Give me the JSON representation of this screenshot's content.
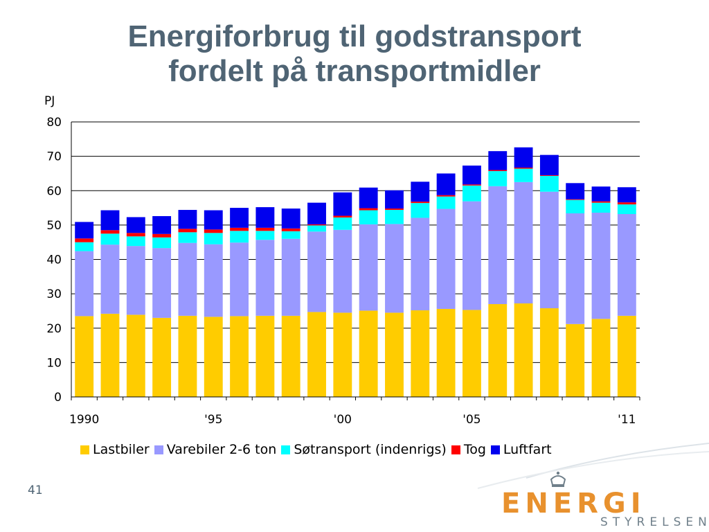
{
  "slide": {
    "title_line1": "Energiforbrug til godstransport",
    "title_line2": "fordelt på transportmidler",
    "number": "41"
  },
  "logo": {
    "word": "ENERGI",
    "sub": "STYRELSEN"
  },
  "chart_data": {
    "type": "bar",
    "stacked": true,
    "unit_label": "PJ",
    "ylim": [
      0,
      80
    ],
    "yticks": [
      0,
      10,
      20,
      30,
      40,
      50,
      60,
      70,
      80
    ],
    "grid": true,
    "legend_position": "bottom",
    "categories": [
      "1990",
      "1991",
      "1992",
      "1993",
      "1994",
      "1995",
      "1996",
      "1997",
      "1998",
      "1999",
      "2000",
      "2001",
      "2002",
      "2003",
      "2004",
      "2005",
      "2006",
      "2007",
      "2008",
      "2009",
      "2010",
      "2011"
    ],
    "x_tick_labels": [
      {
        "index": 0,
        "label": "1990"
      },
      {
        "index": 5,
        "label": "'95"
      },
      {
        "index": 10,
        "label": "'00"
      },
      {
        "index": 15,
        "label": "'05"
      },
      {
        "index": 21,
        "label": "'11"
      }
    ],
    "series": [
      {
        "name": "Lastbiler",
        "color": "#ffcc00",
        "values": [
          23.5,
          24.2,
          23.9,
          23.0,
          23.6,
          23.3,
          23.5,
          23.6,
          23.6,
          24.7,
          24.5,
          25.1,
          24.5,
          25.2,
          25.6,
          25.3,
          27.0,
          27.2,
          25.8,
          21.2,
          22.7,
          23.6
        ]
      },
      {
        "name": "Varebiler 2-6 ton",
        "color": "#9999ff",
        "values": [
          18.9,
          20.1,
          20.0,
          20.3,
          21.2,
          21.1,
          21.4,
          22.1,
          22.4,
          23.4,
          24.1,
          25.1,
          25.8,
          26.9,
          29.1,
          31.6,
          34.3,
          35.3,
          33.9,
          32.2,
          30.9,
          29.6
        ]
      },
      {
        "name": "Søtransport (indenrigs)",
        "color": "#00ffff",
        "values": [
          2.6,
          3.2,
          2.8,
          3.1,
          3.1,
          3.3,
          3.4,
          2.6,
          2.2,
          1.8,
          3.6,
          4.1,
          4.1,
          4.3,
          3.6,
          4.6,
          4.4,
          3.9,
          4.6,
          3.9,
          2.9,
          2.8
        ]
      },
      {
        "name": "Tog",
        "color": "#ff0000",
        "values": [
          1.1,
          1.0,
          1.0,
          1.0,
          1.0,
          1.0,
          0.9,
          0.9,
          0.8,
          0.3,
          0.5,
          0.6,
          0.4,
          0.4,
          0.4,
          0.3,
          0.3,
          0.3,
          0.2,
          0.2,
          0.4,
          0.6
        ]
      },
      {
        "name": "Luftfart",
        "color": "#0000ee",
        "values": [
          4.8,
          5.8,
          4.6,
          5.2,
          5.5,
          5.6,
          5.8,
          6.0,
          5.8,
          6.3,
          6.8,
          6.0,
          5.3,
          5.8,
          6.3,
          5.5,
          5.5,
          5.9,
          5.9,
          4.7,
          4.3,
          4.4
        ]
      }
    ]
  }
}
